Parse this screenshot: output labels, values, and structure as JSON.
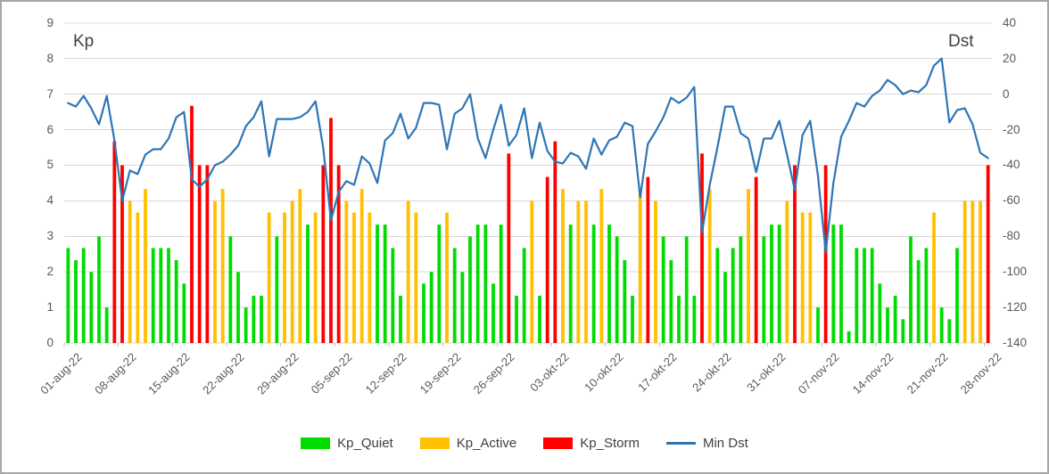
{
  "chart_data": {
    "type": "bar",
    "subtype": "daily Kp bars with Min Dst line overlay (combo bar+line, dual axis)",
    "title_left_axis": "Kp",
    "title_right_axis": "Dst",
    "y_left": {
      "min": 0,
      "max": 9,
      "ticks": [
        9,
        8,
        7,
        6,
        5,
        4,
        3,
        2,
        1,
        0
      ]
    },
    "y_right": {
      "min": -140,
      "max": 40,
      "ticks": [
        40,
        20,
        0,
        -20,
        -40,
        -60,
        -80,
        -100,
        -120,
        -140
      ]
    },
    "grid": "horizontal only, light gray",
    "legend_position": "bottom center",
    "x_tick_labels": [
      "01-aug-22",
      "08-aug-22",
      "15-aug-22",
      "22-aug-22",
      "29-aug-22",
      "05-sep-22",
      "12-sep-22",
      "19-sep-22",
      "26-sep-22",
      "03-okt-22",
      "10-okt-22",
      "17-okt-22",
      "24-okt-22",
      "31-okt-22",
      "07-nov-22",
      "14-nov-22",
      "21-nov-22",
      "28-nov-22"
    ],
    "x_tick_day_offsets": [
      0,
      7,
      14,
      21,
      28,
      35,
      42,
      49,
      56,
      63,
      70,
      77,
      84,
      91,
      98,
      105,
      112,
      119
    ],
    "days_total": 120,
    "kp_values": [
      2.67,
      2.33,
      2.67,
      2.0,
      3.0,
      1.0,
      5.67,
      5.0,
      4.0,
      3.67,
      4.33,
      2.67,
      2.67,
      2.67,
      2.33,
      1.67,
      6.67,
      5.0,
      5.0,
      4.0,
      4.33,
      3.0,
      2.0,
      1.0,
      1.33,
      1.33,
      3.67,
      3.0,
      3.67,
      4.0,
      4.33,
      3.33,
      3.67,
      5.0,
      6.33,
      5.0,
      4.0,
      3.67,
      4.33,
      3.67,
      3.33,
      3.33,
      2.67,
      1.33,
      4.0,
      3.67,
      1.67,
      2.0,
      3.33,
      3.67,
      2.67,
      2.0,
      3.0,
      3.33,
      3.33,
      1.67,
      3.33,
      5.33,
      1.33,
      2.67,
      4.0,
      1.33,
      4.67,
      5.67,
      4.33,
      3.33,
      4.0,
      4.0,
      3.33,
      4.33,
      3.33,
      3.0,
      2.33,
      1.33,
      4.33,
      4.67,
      4.0,
      3.0,
      2.33,
      1.33,
      3.0,
      1.33,
      5.33,
      4.33,
      2.67,
      2.0,
      2.67,
      3.0,
      4.33,
      4.67,
      3.0,
      3.33,
      3.33,
      4.0,
      5.0,
      3.67,
      3.67,
      1.0,
      5.0,
      3.33,
      3.33,
      0.33,
      2.67,
      2.67,
      2.67,
      1.67,
      1.0,
      1.33,
      0.67,
      3.0,
      2.33,
      2.67,
      3.67,
      1.0,
      0.67,
      2.67,
      4.0,
      4.0,
      4.0,
      5.0
    ],
    "kp_categories": [
      "quiet",
      "quiet",
      "quiet",
      "quiet",
      "quiet",
      "quiet",
      "storm",
      "storm",
      "active",
      "active",
      "active",
      "quiet",
      "quiet",
      "quiet",
      "quiet",
      "quiet",
      "storm",
      "storm",
      "storm",
      "active",
      "active",
      "quiet",
      "quiet",
      "quiet",
      "quiet",
      "quiet",
      "active",
      "quiet",
      "active",
      "active",
      "active",
      "quiet",
      "active",
      "storm",
      "storm",
      "storm",
      "active",
      "active",
      "active",
      "active",
      "quiet",
      "quiet",
      "quiet",
      "quiet",
      "active",
      "active",
      "quiet",
      "quiet",
      "quiet",
      "active",
      "quiet",
      "quiet",
      "quiet",
      "quiet",
      "quiet",
      "quiet",
      "quiet",
      "storm",
      "quiet",
      "quiet",
      "active",
      "quiet",
      "storm",
      "storm",
      "active",
      "quiet",
      "active",
      "active",
      "quiet",
      "active",
      "quiet",
      "quiet",
      "quiet",
      "quiet",
      "active",
      "storm",
      "active",
      "quiet",
      "quiet",
      "quiet",
      "quiet",
      "quiet",
      "storm",
      "active",
      "quiet",
      "quiet",
      "quiet",
      "quiet",
      "active",
      "storm",
      "quiet",
      "quiet",
      "quiet",
      "active",
      "storm",
      "active",
      "active",
      "quiet",
      "storm",
      "quiet",
      "quiet",
      "quiet",
      "quiet",
      "quiet",
      "quiet",
      "quiet",
      "quiet",
      "quiet",
      "quiet",
      "quiet",
      "quiet",
      "quiet",
      "active",
      "quiet",
      "quiet",
      "quiet",
      "active",
      "active",
      "active",
      "storm"
    ],
    "dst_values": [
      -5,
      -7,
      -1,
      -8,
      -17,
      -1,
      -26,
      -60,
      -43,
      -45,
      -34,
      -31,
      -31,
      -25,
      -13,
      -10,
      -48,
      -52,
      -48,
      -40,
      -38,
      -34,
      -29,
      -18,
      -13,
      -4,
      -35,
      -14,
      -14,
      -14,
      -13,
      -10,
      -4,
      -30,
      -71,
      -55,
      -49,
      -51,
      -35,
      -39,
      -50,
      -26,
      -22,
      -11,
      -25,
      -19,
      -5,
      -5,
      -6,
      -31,
      -11,
      -8,
      0,
      -25,
      -36,
      -20,
      -6,
      -29,
      -23,
      -8,
      -36,
      -16,
      -32,
      -38,
      -39,
      -33,
      -35,
      -42,
      -25,
      -34,
      -26,
      -24,
      -16,
      -18,
      -58,
      -28,
      -21,
      -13,
      -2,
      -5,
      -2,
      4,
      -78,
      -51,
      -30,
      -7,
      -7,
      -22,
      -25,
      -44,
      -25,
      -25,
      -15,
      -34,
      -54,
      -23,
      -15,
      -46,
      -89,
      -50,
      -24,
      -15,
      -5,
      -7,
      -1,
      2,
      8,
      5,
      0,
      2,
      1,
      5,
      16,
      20,
      -16,
      -9,
      -8,
      -17,
      -33,
      -36
    ],
    "legend": [
      {
        "label": "Kp_Quiet",
        "color": "#00DC00",
        "swatch": "rect"
      },
      {
        "label": "Kp_Active",
        "color": "#FFC000",
        "swatch": "rect"
      },
      {
        "label": "Kp_Storm",
        "color": "#FF0000",
        "swatch": "rect"
      },
      {
        "label": "Min Dst",
        "color": "#2E75B6",
        "swatch": "line"
      }
    ],
    "colors": {
      "kp_quiet": "#00DC00",
      "kp_active": "#FFC000",
      "kp_storm": "#FF0000",
      "min_dst_line": "#2E75B6",
      "gridline": "#D9D9D9",
      "tick_mark": "#BFBFBF",
      "axis_text": "#595959",
      "title_text": "#404040",
      "frame_border": "#A6A6A6"
    }
  }
}
